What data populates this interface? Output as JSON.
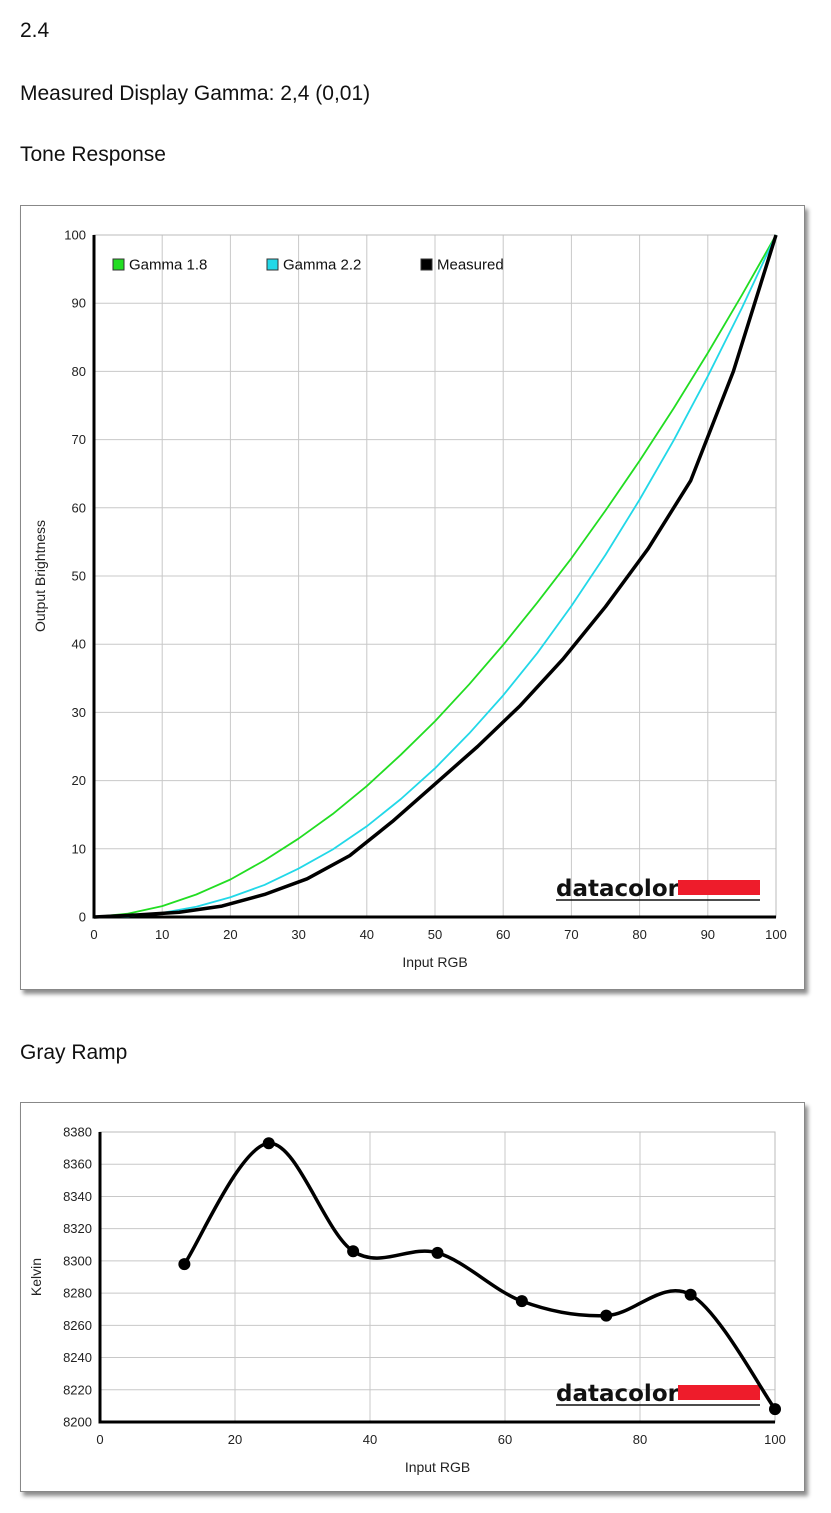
{
  "header": {
    "value": "2.4",
    "measured_label": "Measured Display Gamma: 2,4 (0,01)",
    "tone_title": "Tone Response",
    "gray_title": "Gray Ramp"
  },
  "brand": {
    "name": "datacolor",
    "accent_color": "#ee1c2b"
  },
  "chart_data": [
    {
      "type": "line",
      "title": "",
      "xlabel": "Input RGB",
      "ylabel": "Output Brightness",
      "xlim": [
        0,
        100
      ],
      "ylim": [
        0,
        100
      ],
      "xticks": [
        0,
        10,
        20,
        30,
        40,
        50,
        60,
        70,
        80,
        90,
        100
      ],
      "yticks": [
        0,
        10,
        20,
        30,
        40,
        50,
        60,
        70,
        80,
        90,
        100
      ],
      "grid": true,
      "legend_position": "top-left",
      "series": [
        {
          "name": "Gamma 1.8",
          "color": "#22dd22",
          "x": [
            0,
            5,
            10,
            15,
            20,
            25,
            30,
            35,
            40,
            45,
            50,
            55,
            60,
            65,
            70,
            75,
            80,
            85,
            90,
            95,
            100
          ],
          "y": [
            0,
            0.5,
            1.6,
            3.3,
            5.5,
            8.3,
            11.5,
            15.1,
            19.2,
            23.8,
            28.7,
            34.1,
            39.9,
            46.1,
            52.6,
            59.6,
            66.9,
            74.6,
            82.7,
            91.2,
            100
          ]
        },
        {
          "name": "Gamma 2.2",
          "color": "#22d8e8",
          "x": [
            0,
            5,
            10,
            15,
            20,
            25,
            30,
            35,
            40,
            45,
            50,
            55,
            60,
            65,
            70,
            75,
            80,
            85,
            90,
            95,
            100
          ],
          "y": [
            0,
            0.1,
            0.6,
            1.5,
            2.9,
            4.7,
            7.1,
            9.9,
            13.3,
            17.3,
            21.8,
            26.9,
            32.5,
            38.7,
            45.6,
            53.1,
            61.2,
            69.9,
            79.3,
            89.3,
            100
          ]
        },
        {
          "name": "Measured",
          "color": "#000000",
          "x": [
            0,
            6.25,
            12.5,
            18.75,
            25,
            31.25,
            37.5,
            43.75,
            50,
            56.25,
            62.5,
            68.75,
            75,
            81.25,
            87.5,
            93.75,
            100
          ],
          "y": [
            0,
            0.3,
            0.7,
            1.6,
            3.3,
            5.6,
            9.0,
            14.0,
            19.5,
            25.0,
            31.0,
            37.8,
            45.5,
            54.0,
            64.0,
            80.0,
            100
          ]
        }
      ]
    },
    {
      "type": "line",
      "title": "",
      "xlabel": "Input RGB",
      "ylabel": "Kelvin",
      "xlim": [
        0,
        100
      ],
      "ylim": [
        8200,
        8380
      ],
      "xticks": [
        0,
        20,
        40,
        60,
        80,
        100
      ],
      "yticks": [
        8200,
        8220,
        8240,
        8260,
        8280,
        8300,
        8320,
        8340,
        8360,
        8380
      ],
      "grid": true,
      "series": [
        {
          "color": "#000000",
          "x": [
            12.5,
            25,
            37.5,
            50,
            62.5,
            75,
            87.5,
            100
          ],
          "y": [
            8298,
            8373,
            8306,
            8305,
            8275,
            8266,
            8279,
            8208
          ]
        }
      ]
    }
  ]
}
